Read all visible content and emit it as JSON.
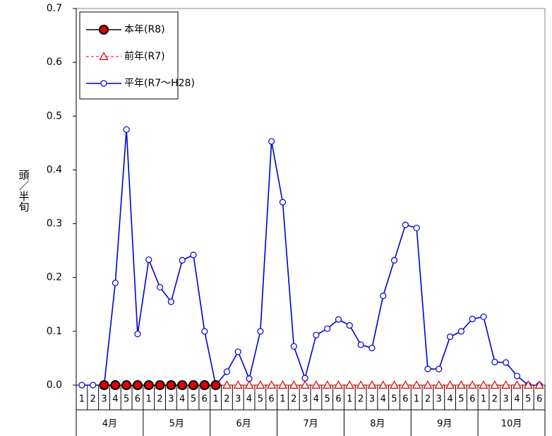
{
  "chart_data": {
    "type": "line",
    "y_label": "頭／半旬",
    "categories": [
      "1",
      "2",
      "3",
      "4",
      "5",
      "6",
      "1",
      "2",
      "3",
      "4",
      "5",
      "6",
      "1",
      "2",
      "3",
      "4",
      "5",
      "6",
      "1",
      "2",
      "3",
      "4",
      "5",
      "6",
      "1",
      "2",
      "3",
      "4",
      "5",
      "6",
      "1",
      "2",
      "3",
      "4",
      "5",
      "6",
      "1",
      "2",
      "3",
      "4",
      "5",
      "6"
    ],
    "month_groups": [
      "4月",
      "5月",
      "6月",
      "7月",
      "8月",
      "9月",
      "10月"
    ],
    "ylim": [
      0,
      0.7
    ],
    "yticks": [
      {
        "value": 0,
        "label": "0.0"
      },
      0.1,
      0.2,
      0.3,
      0.4,
      0.5,
      0.6,
      0.7
    ],
    "series": [
      {
        "name": "本年(R8)",
        "color": "#000000",
        "marker": "circle",
        "marker_fill": "#e00000",
        "dashed": false,
        "values": [
          null,
          null,
          0,
          0,
          0,
          0,
          0,
          0,
          0,
          0,
          0,
          0,
          0,
          null,
          null,
          null,
          null,
          null,
          null,
          null,
          null,
          null,
          null,
          null,
          null,
          null,
          null,
          null,
          null,
          null,
          null,
          null,
          null,
          null,
          null,
          null,
          null,
          null,
          null,
          null,
          null,
          null
        ]
      },
      {
        "name": "前年(R7)",
        "color": "#e00000",
        "marker": "triangle",
        "marker_fill": "#ffffff",
        "dashed": true,
        "values": [
          null,
          null,
          0,
          0,
          0,
          0,
          0,
          0,
          0,
          0,
          0,
          0,
          0,
          0,
          0,
          0,
          0,
          0,
          0,
          0,
          0,
          0,
          0,
          0,
          0,
          0,
          0,
          0,
          0,
          0,
          0,
          0,
          0,
          0,
          0,
          0,
          0,
          0,
          0,
          0,
          0,
          0
        ]
      },
      {
        "name": "平年(R7～H28)",
        "color": "#0000d0",
        "marker": "circle",
        "marker_fill": "#ffffff",
        "dashed": false,
        "values": [
          0,
          0,
          0,
          0.19,
          0.475,
          0.095,
          0.233,
          0.182,
          0.155,
          0.232,
          0.242,
          0.1,
          0,
          0.025,
          0.062,
          0.012,
          0.1,
          0.453,
          0.34,
          0.072,
          0.013,
          0.093,
          0.105,
          0.122,
          0.111,
          0.075,
          0.069,
          0.166,
          0.232,
          0.298,
          0.292,
          0.03,
          0.03,
          0.09,
          0.1,
          0.123,
          0.127,
          0.043,
          0.042,
          0.017,
          0,
          0
        ]
      }
    ]
  }
}
